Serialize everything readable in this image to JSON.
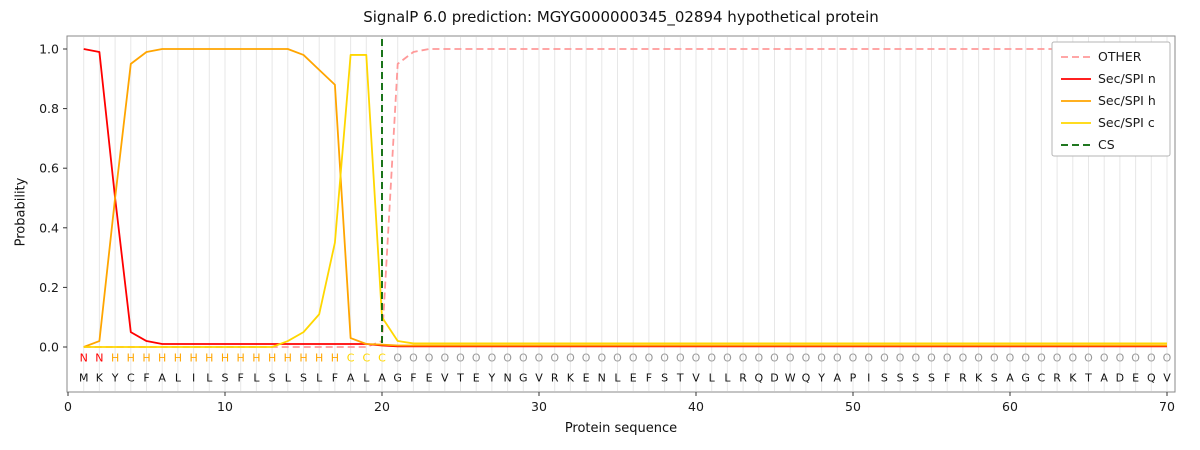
{
  "title": "SignalP 6.0 prediction: MGYG000000345_02894 hypothetical protein",
  "chart_data": {
    "type": "line",
    "xlabel": "Protein sequence",
    "ylabel": "Probability",
    "x_ticks": [
      0,
      10,
      20,
      30,
      40,
      50,
      60,
      70
    ],
    "y_ticks": [
      0.0,
      0.2,
      0.4,
      0.6,
      0.8,
      1.0
    ],
    "ylim": [
      0,
      1
    ],
    "grid": "vertical-per-residue",
    "legend_position": "upper-right",
    "cs_position": 20,
    "sequence": "MKYCFALILSFLSLSLFALAGFEVTEYNGVRKENLEFSTVLLRQDWQYAPISSSSFRKSAGCRKTADEQV",
    "regions": "NNHHHHHHHHHHHHHHHCCCOOOOOOOOOOOOOOOOOOOOOOOOOOOOOOOOOOOOOOOOOOOOOOOOOO",
    "region_colors": {
      "N": "#ff0000",
      "H": "#ffa500",
      "C": "#ffd700",
      "O": "#9a9a9a"
    },
    "colors": {
      "grid": "#e7e7e7",
      "spine": "#8a8a8a",
      "text": "#1a1a1a",
      "sequence": "#111111"
    },
    "series": [
      {
        "name": "OTHER",
        "color": "#ff9999",
        "dash": true,
        "values": [
          0,
          0,
          0,
          0,
          0,
          0,
          0,
          0,
          0,
          0,
          0,
          0,
          0,
          0,
          0,
          0,
          0,
          0,
          0,
          0.02,
          0.95,
          0.99,
          1,
          1,
          1,
          1,
          1,
          1,
          1,
          1,
          1,
          1,
          1,
          1,
          1,
          1,
          1,
          1,
          1,
          1,
          1,
          1,
          1,
          1,
          1,
          1,
          1,
          1,
          1,
          1,
          1,
          1,
          1,
          1,
          1,
          1,
          1,
          1,
          1,
          1,
          1,
          1,
          1,
          1,
          1,
          1,
          1,
          1,
          1,
          1
        ]
      },
      {
        "name": "Sec/SPI n",
        "color": "#ff0000",
        "dash": false,
        "values": [
          1,
          0.99,
          0.5,
          0.05,
          0.02,
          0.01,
          0.01,
          0.01,
          0.01,
          0.01,
          0.01,
          0.01,
          0.01,
          0.01,
          0.01,
          0.01,
          0.01,
          0.01,
          0.01,
          0.005,
          0.002,
          0.002,
          0.002,
          0.002,
          0.002,
          0.002,
          0.002,
          0.002,
          0.002,
          0.002,
          0.002,
          0.002,
          0.002,
          0.002,
          0.002,
          0.002,
          0.002,
          0.002,
          0.002,
          0.002,
          0.002,
          0.002,
          0.002,
          0.002,
          0.002,
          0.002,
          0.002,
          0.002,
          0.002,
          0.002,
          0.002,
          0.002,
          0.002,
          0.002,
          0.002,
          0.002,
          0.002,
          0.002,
          0.002,
          0.002,
          0.002,
          0.002,
          0.002,
          0.002,
          0.002,
          0.002,
          0.002,
          0.002,
          0.002,
          0.002
        ]
      },
      {
        "name": "Sec/SPI h",
        "color": "#ffa500",
        "dash": false,
        "values": [
          0,
          0.02,
          0.5,
          0.95,
          0.99,
          1,
          1,
          1,
          1,
          1,
          1,
          1,
          1,
          1,
          0.98,
          0.93,
          0.88,
          0.03,
          0.01,
          0.008,
          0.005,
          0.005,
          0.005,
          0.005,
          0.005,
          0.005,
          0.005,
          0.005,
          0.005,
          0.005,
          0.005,
          0.005,
          0.005,
          0.005,
          0.005,
          0.005,
          0.005,
          0.005,
          0.005,
          0.005,
          0.005,
          0.005,
          0.005,
          0.005,
          0.005,
          0.005,
          0.005,
          0.005,
          0.005,
          0.005,
          0.005,
          0.005,
          0.005,
          0.005,
          0.005,
          0.005,
          0.005,
          0.005,
          0.005,
          0.005,
          0.005,
          0.005,
          0.005,
          0.005,
          0.005,
          0.005,
          0.005,
          0.005,
          0.005,
          0.005
        ]
      },
      {
        "name": "Sec/SPI c",
        "color": "#ffd700",
        "dash": false,
        "values": [
          0,
          0,
          0,
          0,
          0,
          0,
          0,
          0,
          0,
          0,
          0,
          0,
          0,
          0.02,
          0.05,
          0.11,
          0.35,
          0.98,
          0.98,
          0.1,
          0.02,
          0.012,
          0.012,
          0.012,
          0.012,
          0.012,
          0.012,
          0.012,
          0.012,
          0.012,
          0.012,
          0.012,
          0.012,
          0.012,
          0.012,
          0.012,
          0.012,
          0.012,
          0.012,
          0.012,
          0.012,
          0.012,
          0.012,
          0.012,
          0.012,
          0.012,
          0.012,
          0.012,
          0.012,
          0.012,
          0.012,
          0.012,
          0.012,
          0.012,
          0.012,
          0.012,
          0.012,
          0.012,
          0.012,
          0.012,
          0.012,
          0.012,
          0.012,
          0.012,
          0.012,
          0.012,
          0.012,
          0.012,
          0.012,
          0.012
        ]
      },
      {
        "name": "CS",
        "color": "#006400",
        "dash": true,
        "vline": true,
        "x": 20
      }
    ]
  }
}
